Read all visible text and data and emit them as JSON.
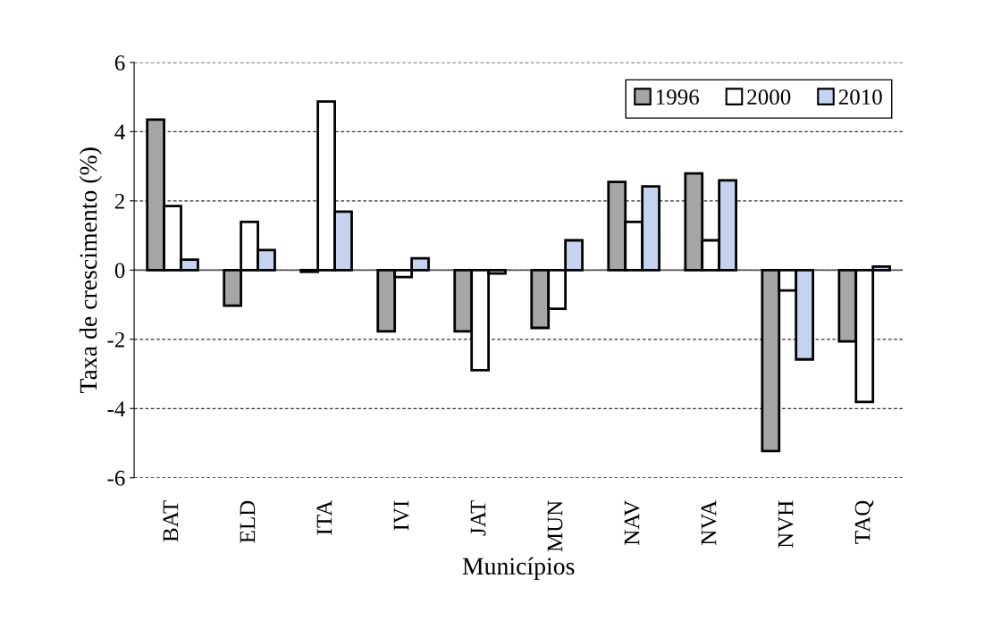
{
  "chart_data": {
    "type": "bar",
    "xlabel": "Municípios",
    "ylabel": "Taxa de crescimento (%)",
    "categories": [
      "BAT",
      "ELD",
      "ITA",
      "IVI",
      "JAT",
      "MUN",
      "NAV",
      "NVA",
      "NVH",
      "TAQ"
    ],
    "series": [
      {
        "name": "1996",
        "color": "#a6a6a6",
        "values": [
          4.35,
          -1.03,
          -0.05,
          -1.77,
          -1.77,
          -1.67,
          2.55,
          2.79,
          -5.23,
          -2.06
        ]
      },
      {
        "name": "2000",
        "color": "#ffffff",
        "values": [
          1.85,
          1.39,
          4.87,
          -0.2,
          -2.89,
          -1.12,
          1.39,
          0.86,
          -0.59,
          -3.81
        ]
      },
      {
        "name": "2010",
        "color": "#c5d3ee",
        "values": [
          0.3,
          0.58,
          1.69,
          0.34,
          -0.1,
          0.86,
          2.42,
          2.59,
          -2.58,
          0.1
        ]
      }
    ],
    "ylim": [
      -6,
      6
    ],
    "yticks": [
      -6,
      -4,
      -2,
      0,
      2,
      4,
      6
    ],
    "grid": "y",
    "legend": "top right"
  }
}
